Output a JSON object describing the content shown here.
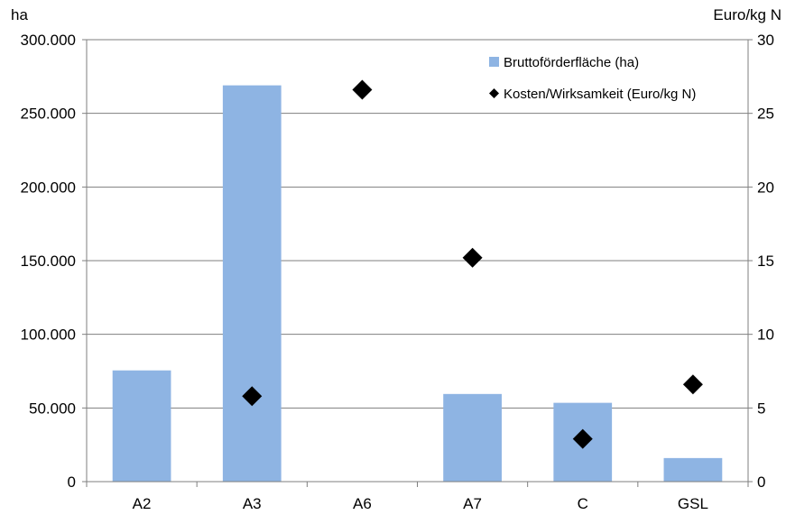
{
  "chart_data": {
    "type": "bar",
    "categories": [
      "A2",
      "A3",
      "A6",
      "A7",
      "C",
      "GSL"
    ],
    "series": [
      {
        "name": "Bruttoförderfläche (ha)",
        "kind": "bar",
        "axis": "left",
        "color": "#8eb4e3",
        "values": [
          75500,
          269000,
          null,
          59500,
          53500,
          16000
        ]
      },
      {
        "name": "Kosten/Wirksamkeit (Euro/kg N)",
        "kind": "scatter",
        "marker": "diamond",
        "axis": "right",
        "color": "#000000",
        "values": [
          null,
          5.8,
          26.6,
          15.2,
          2.9,
          6.6
        ]
      }
    ],
    "ylabel": "ha",
    "y2label": "Euro/kg N",
    "ylim": [
      0,
      300000
    ],
    "y2lim": [
      0,
      30
    ],
    "yticks": [
      "0",
      "50.000",
      "100.000",
      "150.000",
      "200.000",
      "250.000",
      "300.000"
    ],
    "y2ticks": [
      "0",
      "5",
      "10",
      "15",
      "20",
      "25",
      "30"
    ],
    "grid": true,
    "legend_position": "top-right"
  }
}
